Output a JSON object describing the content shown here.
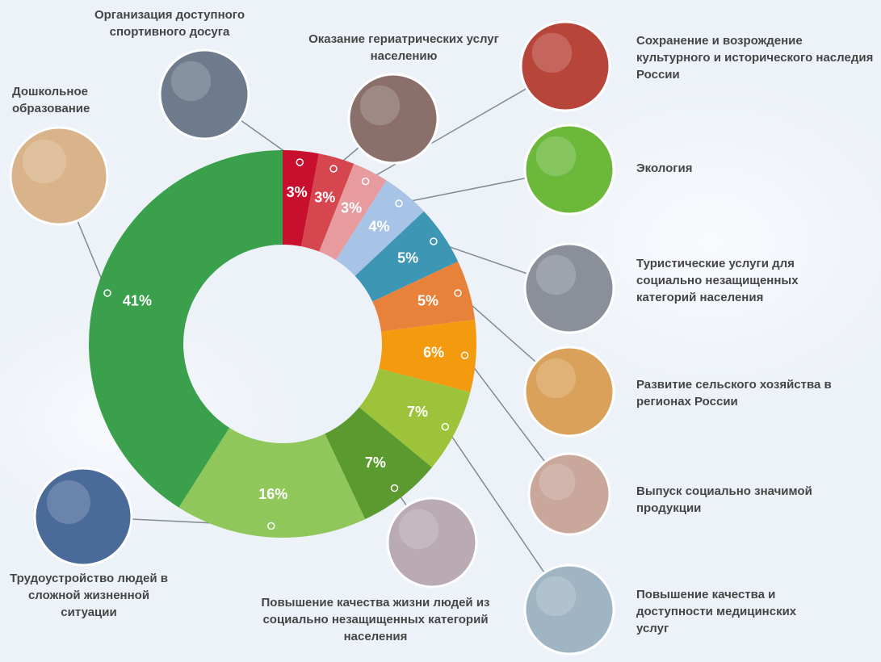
{
  "chart_data": {
    "type": "donut",
    "categories": [
      "Организация доступного спортивного досуга",
      "Оказание гериатрических услуг населению",
      "Сохранение и возрождение культурного и исторического наследия России",
      "Экология",
      "Туристические услуги для социально незащищенных категорий населения",
      "Развитие сельского хозяйства в регионах России",
      "Выпуск социально значимой продукции",
      "Повышение качества и доступности медицинских услуг",
      "Повышение качества жизни людей из социально незащищенных категорий населения",
      "Трудоустройство людей в сложной жизненной ситуации",
      "Дошкольное образование"
    ],
    "values": [
      3,
      3,
      3,
      4,
      5,
      5,
      6,
      7,
      7,
      16,
      41
    ],
    "value_labels": [
      "3%",
      "3%",
      "3%",
      "4%",
      "5%",
      "5%",
      "6%",
      "7%",
      "7%",
      "16%",
      "41%"
    ],
    "colors": [
      "#c8102e",
      "#d6464f",
      "#e79b9f",
      "#a7c3e6",
      "#3d96b4",
      "#e8823a",
      "#f39a0f",
      "#9cc33a",
      "#5b9a2f",
      "#8fc75b",
      "#3aa04b"
    ]
  }
}
